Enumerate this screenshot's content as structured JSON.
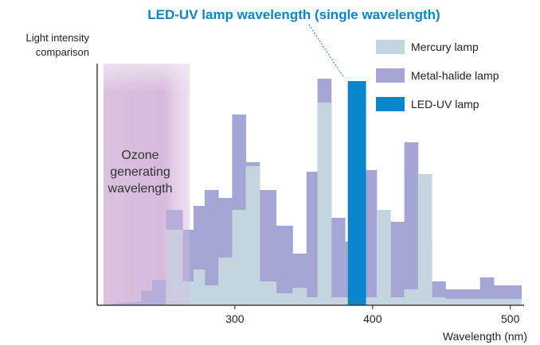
{
  "chart_data": {
    "type": "bar",
    "title": "LED-UV lamp wavelength (single wavelength)",
    "ylabel": [
      "Light intensity",
      "comparison"
    ],
    "xlabel": "Wavelength (nm)",
    "x_ticks": [
      300,
      400,
      500
    ],
    "xlim": [
      200,
      510
    ],
    "ylim": [
      0,
      300
    ],
    "zone": {
      "label": [
        "Ozone",
        "generating",
        "wavelength"
      ],
      "x_range": [
        205,
        265
      ]
    },
    "legend": {
      "position": "top-right",
      "items": [
        {
          "name": "Mercury lamp",
          "color": "#c5d5e0"
        },
        {
          "name": "Metal-halide lamp",
          "color": "#a6a6d6"
        },
        {
          "name": "LED-UV lamp",
          "color": "#0a87cc"
        }
      ]
    },
    "series": [
      {
        "name": "Metal-halide lamp",
        "color": "#a6a6d6",
        "bins": [
          {
            "x0": 232,
            "x1": 240,
            "y": 18
          },
          {
            "x0": 240,
            "x1": 250,
            "y": 32
          },
          {
            "x0": 250,
            "x1": 262,
            "y": 120
          },
          {
            "x0": 262,
            "x1": 270,
            "y": 95
          },
          {
            "x0": 270,
            "x1": 278,
            "y": 125
          },
          {
            "x0": 278,
            "x1": 288,
            "y": 145
          },
          {
            "x0": 288,
            "x1": 298,
            "y": 135
          },
          {
            "x0": 298,
            "x1": 308,
            "y": 240
          },
          {
            "x0": 308,
            "x1": 318,
            "y": 180
          },
          {
            "x0": 318,
            "x1": 330,
            "y": 145
          },
          {
            "x0": 330,
            "x1": 342,
            "y": 100
          },
          {
            "x0": 342,
            "x1": 352,
            "y": 65
          },
          {
            "x0": 352,
            "x1": 360,
            "y": 168
          },
          {
            "x0": 360,
            "x1": 370,
            "y": 285
          },
          {
            "x0": 370,
            "x1": 380,
            "y": 110
          },
          {
            "x0": 380,
            "x1": 388,
            "y": 80
          },
          {
            "x0": 388,
            "x1": 395,
            "y": 90
          },
          {
            "x0": 395,
            "x1": 403,
            "y": 170
          },
          {
            "x0": 403,
            "x1": 413,
            "y": 90
          },
          {
            "x0": 413,
            "x1": 423,
            "y": 105
          },
          {
            "x0": 423,
            "x1": 433,
            "y": 205
          },
          {
            "x0": 433,
            "x1": 443,
            "y": 75
          },
          {
            "x0": 443,
            "x1": 453,
            "y": 30
          },
          {
            "x0": 453,
            "x1": 478,
            "y": 20
          },
          {
            "x0": 478,
            "x1": 488,
            "y": 35
          },
          {
            "x0": 488,
            "x1": 498,
            "y": 25
          },
          {
            "x0": 498,
            "x1": 508,
            "y": 25
          }
        ]
      },
      {
        "name": "Mercury lamp",
        "color": "#c5d5e0",
        "bins": [
          {
            "x0": 250,
            "x1": 262,
            "y": 95
          },
          {
            "x0": 262,
            "x1": 270,
            "y": 30
          },
          {
            "x0": 270,
            "x1": 278,
            "y": 45
          },
          {
            "x0": 278,
            "x1": 288,
            "y": 25
          },
          {
            "x0": 288,
            "x1": 298,
            "y": 60
          },
          {
            "x0": 298,
            "x1": 308,
            "y": 120
          },
          {
            "x0": 308,
            "x1": 318,
            "y": 175
          },
          {
            "x0": 318,
            "x1": 330,
            "y": 30
          },
          {
            "x0": 330,
            "x1": 342,
            "y": 15
          },
          {
            "x0": 342,
            "x1": 352,
            "y": 22
          },
          {
            "x0": 352,
            "x1": 360,
            "y": 10
          },
          {
            "x0": 360,
            "x1": 370,
            "y": 255
          },
          {
            "x0": 370,
            "x1": 380,
            "y": 10
          },
          {
            "x0": 380,
            "x1": 388,
            "y": 10
          },
          {
            "x0": 388,
            "x1": 395,
            "y": 10
          },
          {
            "x0": 395,
            "x1": 403,
            "y": 10
          },
          {
            "x0": 403,
            "x1": 413,
            "y": 120
          },
          {
            "x0": 413,
            "x1": 423,
            "y": 10
          },
          {
            "x0": 423,
            "x1": 433,
            "y": 20
          },
          {
            "x0": 433,
            "x1": 443,
            "y": 165
          },
          {
            "x0": 443,
            "x1": 453,
            "y": 10
          },
          {
            "x0": 453,
            "x1": 478,
            "y": 8
          },
          {
            "x0": 478,
            "x1": 508,
            "y": 8
          }
        ]
      },
      {
        "name": "LED-UV lamp",
        "color": "#0a87cc",
        "bins": [
          {
            "x0": 382,
            "x1": 395,
            "y": 282
          }
        ]
      }
    ]
  }
}
